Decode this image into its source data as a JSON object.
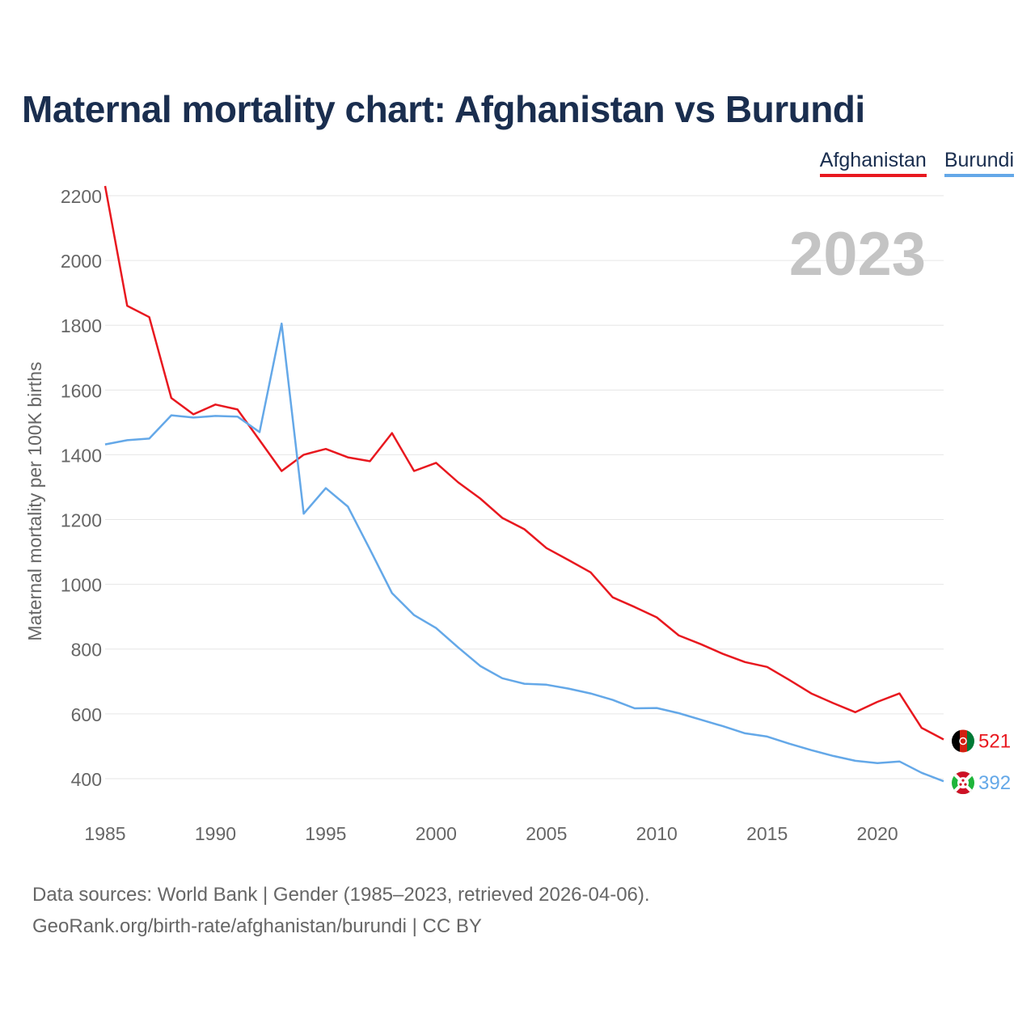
{
  "title": "Maternal mortality chart: Afghanistan vs Burundi",
  "legend": [
    {
      "name": "Afghanistan",
      "color": "#e8181f"
    },
    {
      "name": "Burundi",
      "color": "#64a8e8"
    }
  ],
  "year_watermark": "2023",
  "footer": {
    "line1": "Data sources: World Bank | Gender (1985–2023, retrieved 2026-04-06).",
    "line2": "GeoRank.org/birth-rate/afghanistan/burundi | CC BY"
  },
  "chart_data": {
    "type": "line",
    "title": "Maternal mortality chart: Afghanistan vs Burundi",
    "xlabel": "",
    "ylabel": "Maternal mortality per 100K births",
    "xlim": [
      1985,
      2023
    ],
    "ylim": [
      300,
      2230
    ],
    "x_ticks": [
      1985,
      1990,
      1995,
      2000,
      2005,
      2010,
      2015,
      2020
    ],
    "y_ticks": [
      400,
      600,
      800,
      1000,
      1200,
      1400,
      1600,
      1800,
      2000,
      2200
    ],
    "grid": true,
    "legend_position": "top-right",
    "x": [
      1985,
      1986,
      1987,
      1988,
      1989,
      1990,
      1991,
      1992,
      1993,
      1994,
      1995,
      1996,
      1997,
      1998,
      1999,
      2000,
      2001,
      2002,
      2003,
      2004,
      2005,
      2006,
      2007,
      2008,
      2009,
      2010,
      2011,
      2012,
      2013,
      2014,
      2015,
      2016,
      2017,
      2018,
      2019,
      2020,
      2021,
      2022,
      2023
    ],
    "series": [
      {
        "name": "Afghanistan",
        "color": "#e8181f",
        "end_label": "521",
        "flag": "afghanistan-flag",
        "values": [
          2230,
          1860,
          1825,
          1575,
          1525,
          1555,
          1540,
          1445,
          1350,
          1400,
          1418,
          1392,
          1380,
          1467,
          1350,
          1375,
          1315,
          1265,
          1205,
          1170,
          1112,
          1075,
          1037,
          960,
          930,
          898,
          842,
          815,
          785,
          760,
          745,
          705,
          663,
          633,
          605,
          637,
          663,
          557,
          521
        ]
      },
      {
        "name": "Burundi",
        "color": "#64a8e8",
        "end_label": "392",
        "flag": "burundi-flag",
        "values": [
          1432,
          1445,
          1450,
          1522,
          1515,
          1520,
          1518,
          1470,
          1805,
          1218,
          1297,
          1240,
          1108,
          973,
          905,
          865,
          805,
          748,
          710,
          693,
          690,
          678,
          663,
          643,
          617,
          618,
          602,
          582,
          562,
          540,
          530,
          508,
          488,
          470,
          455,
          448,
          453,
          418,
          392
        ]
      }
    ]
  }
}
